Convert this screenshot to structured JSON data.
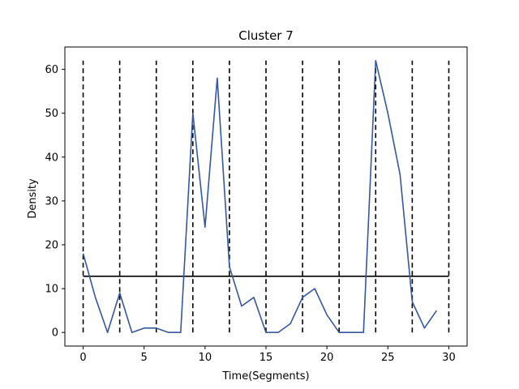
{
  "chart_data": {
    "type": "line",
    "title": "Cluster 7",
    "xlabel": "Time(Segments)",
    "ylabel": "Density",
    "xlim": [
      -1.5,
      31.5
    ],
    "ylim": [
      -3.1,
      65.1
    ],
    "xticks": [
      0,
      5,
      10,
      15,
      20,
      25,
      30
    ],
    "yticks": [
      0,
      10,
      20,
      30,
      40,
      50,
      60
    ],
    "grid": false,
    "series": [
      {
        "color": "#3557a0",
        "x": [
          0,
          1,
          2,
          3,
          4,
          5,
          6,
          7,
          8,
          9,
          10,
          11,
          12,
          13,
          14,
          15,
          16,
          17,
          18,
          19,
          20,
          21,
          22,
          23,
          24,
          25,
          26,
          27,
          28,
          29
        ],
        "values": [
          18,
          8,
          0,
          9,
          0,
          1,
          1,
          0,
          0,
          50,
          24,
          58,
          15,
          6,
          8,
          0,
          0,
          2,
          8,
          10,
          4,
          0,
          0,
          0,
          62,
          50,
          36,
          7,
          1,
          5
        ]
      }
    ],
    "vertical_dashed_lines": {
      "x": [
        0,
        3,
        6,
        9,
        12,
        15,
        18,
        21,
        24,
        27,
        30
      ],
      "y_range": [
        0,
        62
      ],
      "color": "#000000"
    },
    "horizontal_line": {
      "y": 12.8,
      "x_range": [
        0,
        30
      ],
      "color": "#000000"
    }
  }
}
